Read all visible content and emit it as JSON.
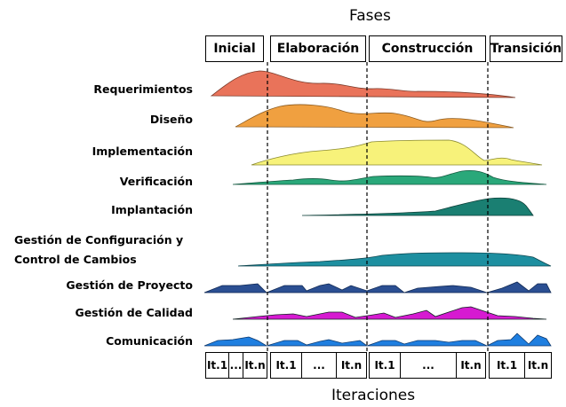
{
  "top_label": "Fases",
  "bottom_label": "Iteraciones",
  "phases": [
    "Inicial",
    "Elaboración",
    "Construcción",
    "Transición"
  ],
  "disciplines": [
    "Requerimientos",
    "Diseño",
    "Implementación",
    "Verificación",
    "Implantación",
    "Gestión de Configuración y",
    "Control de Cambios",
    "Gestión de Proyecto",
    "Gestión de Calidad",
    "Comunicación"
  ],
  "iterations": [
    "It.1",
    "...",
    "It.n",
    "It.1",
    "...",
    "It.n",
    "It.1",
    "...",
    "It.n",
    "It.1",
    "It.n"
  ],
  "colors": {
    "requerimientos": "#e9735a",
    "diseno": "#f0a040",
    "implementacion": "#f7f27a",
    "verificacion": "#2aa87a",
    "implantacion": "#1a7f72",
    "configuracion": "#1d8fa0",
    "proyecto": "#2b4f92",
    "calidad": "#d61ad1",
    "comunicacion": "#1f7fe0"
  }
}
